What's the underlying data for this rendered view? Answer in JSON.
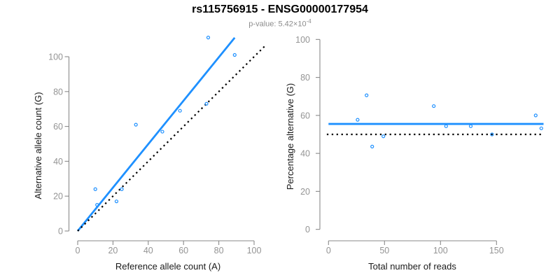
{
  "header": {
    "title": "rs115756915 - ENSG00000177954",
    "pvalue_text": "p-value: 5.42×10",
    "pvalue_exponent": "-4"
  },
  "colors": {
    "accent_blue": "#1E90FF",
    "dashed_line": "#000000",
    "axis": "#8A8A8A",
    "tick_label": "#949494",
    "title": "#000000",
    "subtitle": "#8C8C8C"
  },
  "chart_data": [
    {
      "type": "scatter",
      "panel": "left",
      "xlabel": "Reference allele count (A)",
      "ylabel": "Alternative allele count (G)",
      "xticks": [
        0,
        20,
        40,
        60,
        80,
        100
      ],
      "yticks": [
        0,
        20,
        40,
        60,
        80,
        100
      ],
      "xlim": [
        0,
        107
      ],
      "ylim": [
        0,
        112
      ],
      "grid": false,
      "legend": "none",
      "points": [
        [
          10,
          24
        ],
        [
          11,
          15
        ],
        [
          22,
          17
        ],
        [
          25,
          24
        ],
        [
          33,
          61
        ],
        [
          48,
          57
        ],
        [
          58,
          69
        ],
        [
          73,
          73
        ],
        [
          74,
          111
        ],
        [
          89,
          101
        ]
      ],
      "lines": [
        {
          "name": "allelic-ratio-fit-line",
          "style": "solid",
          "color": "#1E90FF",
          "x1": 0,
          "y1": 0,
          "x2": 89,
          "y2": 110.9
        },
        {
          "name": "identity-line",
          "style": "dotted",
          "color": "#000000",
          "x1": 0,
          "y1": 0,
          "x2": 107,
          "y2": 107
        }
      ]
    },
    {
      "type": "scatter",
      "panel": "right",
      "xlabel": "Total number of reads",
      "ylabel": "Percentage alternative (G)",
      "xticks": [
        0,
        50,
        100,
        150
      ],
      "yticks": [
        0,
        20,
        40,
        60,
        80,
        100
      ],
      "xlim": [
        0,
        192
      ],
      "ylim": [
        0,
        100
      ],
      "grid": false,
      "legend": "none",
      "points": [
        [
          34,
          70.6
        ],
        [
          26,
          57.7
        ],
        [
          39,
          43.6
        ],
        [
          49,
          49
        ],
        [
          94,
          64.9
        ],
        [
          105,
          54.3
        ],
        [
          127,
          54.3
        ],
        [
          146,
          50
        ],
        [
          185,
          60
        ],
        [
          190,
          53.2
        ]
      ],
      "lines": [
        {
          "name": "mean-percentage-line",
          "style": "solid",
          "color": "#1E90FF",
          "x1": 0,
          "y1": 55.5,
          "x2": 192,
          "y2": 55.5
        },
        {
          "name": "fifty-percent-reference-line",
          "style": "dotted",
          "color": "#000000",
          "x1": -1.5,
          "y1": 50,
          "x2": 192,
          "y2": 50
        }
      ]
    }
  ]
}
